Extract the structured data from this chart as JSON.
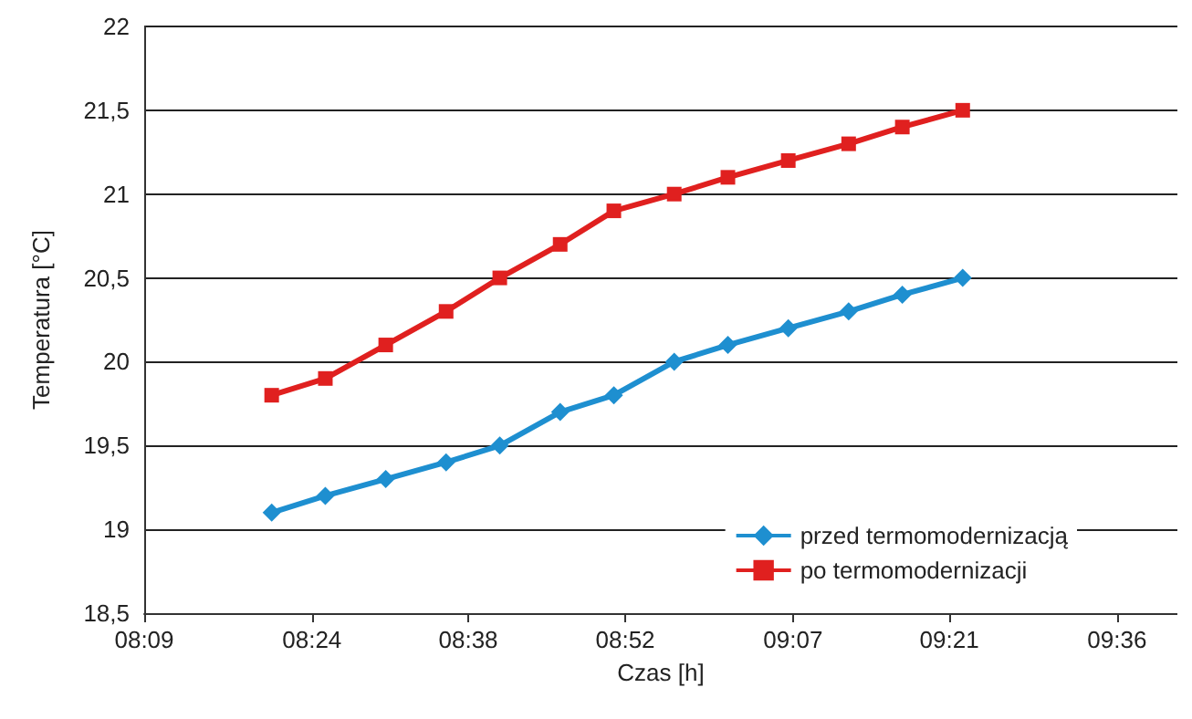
{
  "chart_data": {
    "type": "line",
    "xlabel": "Czas [h]",
    "ylabel": "Temperatura [°C]",
    "x": [
      8.34,
      8.42,
      8.51,
      8.6,
      8.68,
      8.77,
      8.85,
      8.94,
      9.02,
      9.11,
      9.2,
      9.28,
      9.37
    ],
    "series": [
      {
        "name": "przed termomodernizacją",
        "color": "#1e8fd0",
        "marker": "diamond",
        "values": [
          19.1,
          19.2,
          19.3,
          19.4,
          19.5,
          19.7,
          19.8,
          20.0,
          20.1,
          20.2,
          20.3,
          20.4,
          20.5
        ]
      },
      {
        "name": "po termomodernizacji",
        "color": "#e0201f",
        "marker": "square",
        "values": [
          19.8,
          19.9,
          20.1,
          20.3,
          20.5,
          20.7,
          20.9,
          21.0,
          21.1,
          21.2,
          21.3,
          21.4,
          21.5
        ]
      }
    ],
    "xlim": [
      8.15,
      9.69
    ],
    "xticks": [
      {
        "value": 8.15,
        "label": "08:09"
      },
      {
        "value": 8.4,
        "label": "08:24"
      },
      {
        "value": 8.633,
        "label": "08:38"
      },
      {
        "value": 8.867,
        "label": "08:52"
      },
      {
        "value": 9.117,
        "label": "09:07"
      },
      {
        "value": 9.35,
        "label": "09:21"
      },
      {
        "value": 9.6,
        "label": "09:36"
      }
    ],
    "ylim": [
      18.5,
      22
    ],
    "yticks": [
      {
        "value": 18.5,
        "label": "18,5"
      },
      19,
      {
        "value": 19.5,
        "label": "19,5"
      },
      20,
      {
        "value": 20.5,
        "label": "20,5"
      },
      21,
      {
        "value": 21.5,
        "label": "21,5"
      },
      22
    ],
    "grid": "y",
    "legend": "bottom right",
    "line_style": "solid"
  }
}
